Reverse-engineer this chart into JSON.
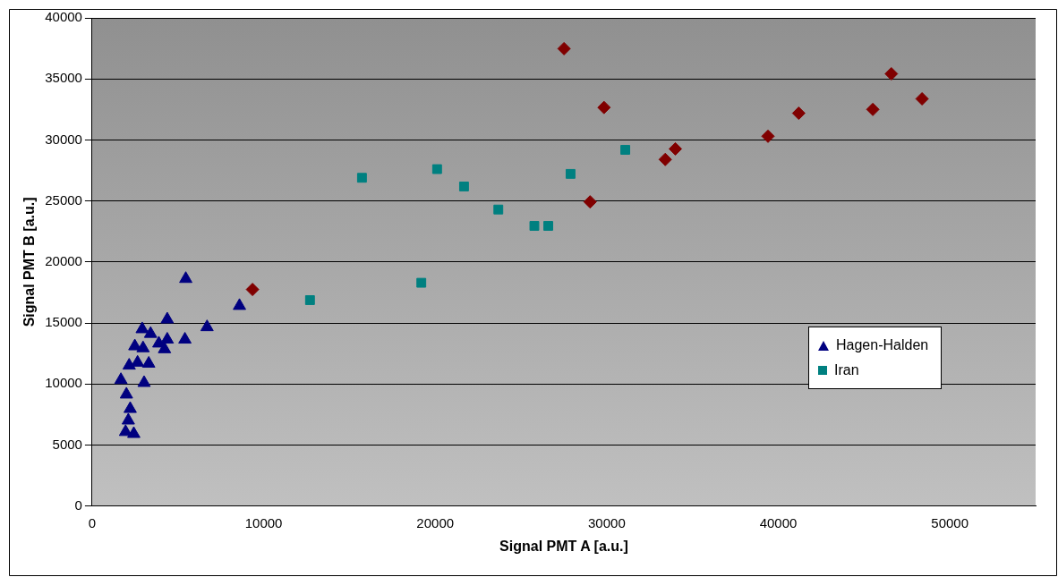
{
  "chart_data": {
    "type": "scatter",
    "xlabel": "Signal PMT A [a.u.]",
    "ylabel": "Signal PMT B [a.u.]",
    "xlim": [
      0,
      55000
    ],
    "xticks": [
      0,
      10000,
      20000,
      30000,
      40000,
      50000
    ],
    "ylim": [
      0,
      40000
    ],
    "yticks": [
      0,
      5000,
      10000,
      15000,
      20000,
      25000,
      30000,
      35000,
      40000
    ],
    "grid": "y",
    "legend": "right",
    "series": [
      {
        "name": "Hagen-Halden",
        "color": "#000080",
        "marker": "triangle",
        "x": [
          5460,
          8590,
          4380,
          6700,
          2920,
          3410,
          4380,
          5410,
          3890,
          4220,
          2490,
          2970,
          2160,
          2650,
          3300,
          1680,
          3030,
          2000,
          2220,
          2110,
          1950,
          2430
        ],
        "values": [
          18620,
          16410,
          15300,
          14670,
          14500,
          14120,
          13650,
          13650,
          13330,
          12860,
          13100,
          12940,
          11520,
          11760,
          11680,
          10340,
          10100,
          9150,
          7970,
          7020,
          6080,
          5920
        ]
      },
      {
        "name": "Iran",
        "color": "#008080",
        "marker": "square",
        "x": [
          15730,
          20110,
          21680,
          23680,
          25780,
          26590,
          27890,
          31080,
          19190,
          12700
        ],
        "values": [
          26900,
          27610,
          26190,
          24300,
          22960,
          22960,
          27220,
          29190,
          18300,
          16880
        ]
      },
      {
        "color": "#800000",
        "marker": "diamond",
        "x": [
          9350,
          27510,
          29840,
          29030,
          33410,
          34000,
          39400,
          41190,
          45510,
          46590,
          48380
        ],
        "values": [
          17750,
          37480,
          32660,
          24930,
          28400,
          29270,
          30300,
          32190,
          32500,
          35420,
          33370
        ]
      }
    ]
  }
}
